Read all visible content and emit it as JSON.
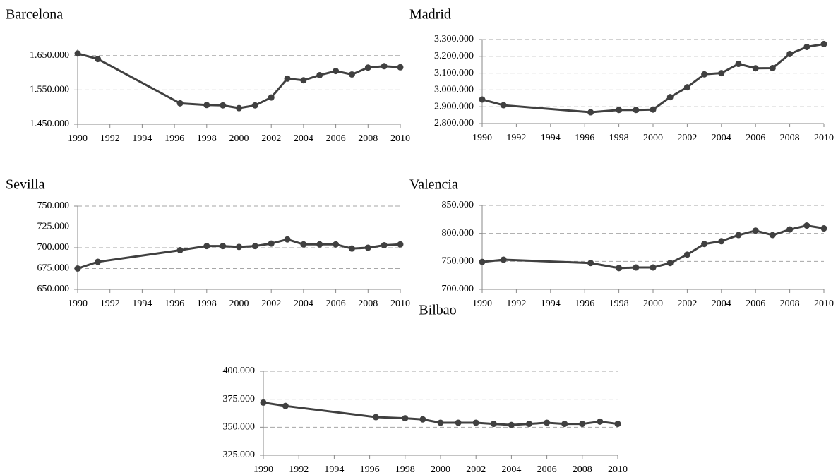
{
  "chart_data": [
    {
      "type": "line",
      "title": "Barcelona",
      "color": "#404040",
      "grid": true,
      "x": [
        1990,
        1991.25,
        1996.35,
        1998,
        1999,
        2000,
        2001,
        2002,
        2003,
        2004,
        2005,
        2006,
        2007,
        2008,
        2009,
        2010
      ],
      "values": [
        1656000,
        1640000,
        1511000,
        1506000,
        1505000,
        1497000,
        1505000,
        1528000,
        1583000,
        1578000,
        1593000,
        1605000,
        1595000,
        1615000,
        1619000,
        1616000
      ],
      "xlim": [
        1990,
        2010
      ],
      "xticks": [
        1990,
        1992,
        1994,
        1996,
        1998,
        2000,
        2002,
        2004,
        2006,
        2008,
        2010
      ],
      "ylim": [
        1450000,
        1670000
      ],
      "yticks": [
        {
          "value": 1450000,
          "label": "1.450.000"
        },
        {
          "value": 1550000,
          "label": "1.550.000"
        },
        {
          "value": 1650000,
          "label": "1.650.000"
        }
      ]
    },
    {
      "type": "line",
      "title": "Madrid",
      "color": "#404040",
      "grid": true,
      "x": [
        1990,
        1991.25,
        1996.35,
        1998,
        1999,
        2000,
        2001,
        2002,
        2003,
        2004,
        2005,
        2006,
        2007,
        2008,
        2009,
        2010
      ],
      "values": [
        2943000,
        2909000,
        2867000,
        2881000,
        2881000,
        2883000,
        2957000,
        3016000,
        3093000,
        3100000,
        3155000,
        3129000,
        3130000,
        3214000,
        3256000,
        3273000
      ],
      "xlim": [
        1990,
        2010
      ],
      "xticks": [
        1990,
        1992,
        1994,
        1996,
        1998,
        2000,
        2002,
        2004,
        2006,
        2008,
        2010
      ],
      "ylim": [
        2800000,
        3300000
      ],
      "yticks": [
        {
          "value": 2800000,
          "label": "2.800.000"
        },
        {
          "value": 2900000,
          "label": "2.900.000"
        },
        {
          "value": 3000000,
          "label": "3.000.000"
        },
        {
          "value": 3100000,
          "label": "3.100.000"
        },
        {
          "value": 3200000,
          "label": "3.200.000"
        },
        {
          "value": 3300000,
          "label": "3.300.000"
        }
      ]
    },
    {
      "type": "line",
      "title": "Sevilla",
      "color": "#404040",
      "grid": true,
      "x": [
        1990,
        1991.25,
        1996.35,
        1998,
        1999,
        2000,
        2001,
        2002,
        2003,
        2004,
        2005,
        2006,
        2007,
        2008,
        2009,
        2010
      ],
      "values": [
        675000,
        683000,
        697000,
        702000,
        702000,
        701000,
        702000,
        705000,
        710000,
        704000,
        704000,
        704000,
        699000,
        700000,
        703000,
        704000
      ],
      "xlim": [
        1990,
        2010
      ],
      "xticks": [
        1990,
        1992,
        1994,
        1996,
        1998,
        2000,
        2002,
        2004,
        2006,
        2008,
        2010
      ],
      "ylim": [
        650000,
        750000
      ],
      "yticks": [
        {
          "value": 650000,
          "label": "650.000"
        },
        {
          "value": 675000,
          "label": "675.000"
        },
        {
          "value": 700000,
          "label": "700.000"
        },
        {
          "value": 725000,
          "label": "725.000"
        },
        {
          "value": 750000,
          "label": "750.000"
        }
      ]
    },
    {
      "type": "line",
      "title": "Valencia",
      "color": "#404040",
      "grid": true,
      "x": [
        1990,
        1991.25,
        1996.35,
        1998,
        1999,
        2000,
        2001,
        2002,
        2003,
        2004,
        2005,
        2006,
        2007,
        2008,
        2009,
        2010
      ],
      "values": [
        749000,
        753000,
        747000,
        738000,
        739000,
        739000,
        747000,
        762000,
        781000,
        786000,
        797000,
        805000,
        797000,
        807000,
        814000,
        809000
      ],
      "xlim": [
        1990,
        2010
      ],
      "xticks": [
        1990,
        1992,
        1994,
        1996,
        1998,
        2000,
        2002,
        2004,
        2006,
        2008,
        2010
      ],
      "ylim": [
        700000,
        850000
      ],
      "yticks": [
        {
          "value": 700000,
          "label": "700.000"
        },
        {
          "value": 750000,
          "label": "750.000"
        },
        {
          "value": 800000,
          "label": "800.000"
        },
        {
          "value": 850000,
          "label": "850.000"
        }
      ]
    },
    {
      "type": "line",
      "title": "Bilbao",
      "color": "#404040",
      "grid": true,
      "x": [
        1990,
        1991.25,
        1996.35,
        1998,
        1999,
        2000,
        2001,
        2002,
        2003,
        2004,
        2005,
        2006,
        2007,
        2008,
        2009,
        2010
      ],
      "values": [
        372000,
        369000,
        359000,
        358000,
        357000,
        354000,
        354000,
        354000,
        353000,
        352000,
        353000,
        354000,
        353000,
        353000,
        355000,
        353000
      ],
      "xlim": [
        1990,
        2010
      ],
      "xticks": [
        1990,
        1992,
        1994,
        1996,
        1998,
        2000,
        2002,
        2004,
        2006,
        2008,
        2010
      ],
      "ylim": [
        325000,
        400000
      ],
      "yticks": [
        {
          "value": 325000,
          "label": "325.000"
        },
        {
          "value": 350000,
          "label": "350.000"
        },
        {
          "value": 375000,
          "label": "375.000"
        },
        {
          "value": 400000,
          "label": "400.000"
        }
      ]
    }
  ]
}
